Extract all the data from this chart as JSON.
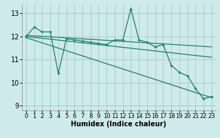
{
  "xlabel": "Humidex (Indice chaleur)",
  "background_color": "#ceeaea",
  "grid_color": "#aacece",
  "line_color": "#1a7a6e",
  "xlim": [
    -0.5,
    23.5
  ],
  "ylim": [
    8.8,
    13.4
  ],
  "yticks": [
    9,
    10,
    11,
    12,
    13
  ],
  "xticks": [
    0,
    1,
    2,
    3,
    4,
    5,
    6,
    7,
    8,
    9,
    10,
    11,
    12,
    13,
    14,
    15,
    16,
    17,
    18,
    19,
    20,
    21,
    22,
    23
  ],
  "series1_x": [
    0,
    1,
    2,
    3,
    4,
    5,
    6,
    7,
    8,
    9,
    10,
    11,
    12,
    13,
    14,
    15,
    16,
    17,
    18,
    19,
    20,
    21,
    22,
    23
  ],
  "series1_y": [
    12.0,
    12.4,
    12.2,
    12.2,
    10.4,
    11.9,
    11.85,
    11.8,
    11.75,
    11.7,
    11.65,
    11.85,
    11.85,
    13.2,
    11.85,
    11.75,
    11.55,
    11.65,
    10.75,
    10.45,
    10.3,
    9.75,
    9.3,
    9.4
  ],
  "trend1_x": [
    0,
    23
  ],
  "trend1_y": [
    12.05,
    11.55
  ],
  "trend2_x": [
    0,
    23
  ],
  "trend2_y": [
    12.0,
    11.1
  ],
  "trend3_x": [
    0,
    23
  ],
  "trend3_y": [
    11.95,
    9.35
  ],
  "fontsize_label": 7,
  "fontsize_tick": 6
}
